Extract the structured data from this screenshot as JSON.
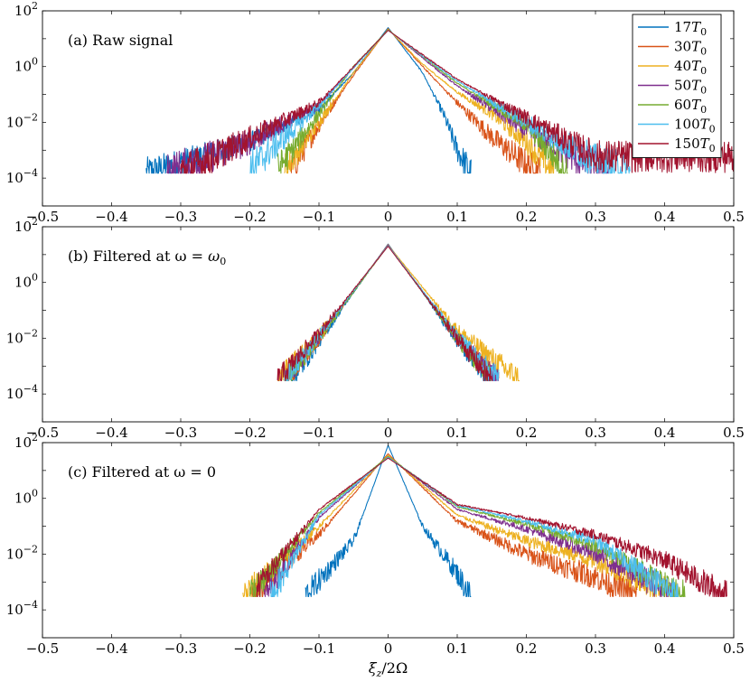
{
  "chart_data": [
    {
      "type": "line",
      "panel_label": "(a) Raw signal",
      "xlabel": "",
      "ylabel": "",
      "xlim": [
        -0.5,
        0.5
      ],
      "ylim": [
        1e-05,
        100
      ],
      "y_scale": "log",
      "x_ticks": [
        "−0.5",
        "−0.4",
        "−0.3",
        "−0.2",
        "−0.1",
        "0",
        "0.1",
        "0.2",
        "0.3",
        "0.4",
        "0.5"
      ],
      "y_ticks": [
        {
          "base": "10",
          "exp": "2",
          "value": 100
        },
        {
          "base": "10",
          "exp": "0",
          "value": 1
        },
        {
          "base": "10",
          "exp": "−2",
          "value": 0.01
        },
        {
          "base": "10",
          "exp": "−4",
          "value": 0.0001
        }
      ],
      "grid": false,
      "legend_position": "top-right",
      "series": [
        {
          "name": "17T0",
          "peak": 25,
          "left_end": -0.35,
          "right_end": 0.12,
          "floor": 0.00015,
          "noise": 0.55,
          "points": [
            [
              -0.35,
              0.00015
            ],
            [
              -0.2,
              0.002
            ],
            [
              -0.1,
              0.03
            ],
            [
              -0.05,
              0.6
            ],
            [
              0,
              25
            ],
            [
              0.05,
              0.6
            ],
            [
              0.08,
              0.02
            ],
            [
              0.1,
              0.001
            ],
            [
              0.12,
              0.00015
            ]
          ]
        },
        {
          "name": "30T0",
          "peak": 23,
          "left_end": -0.14,
          "right_end": 0.22,
          "floor": 0.00015,
          "noise": 0.6,
          "points": [
            [
              -0.14,
              0.0002
            ],
            [
              -0.1,
              0.008
            ],
            [
              -0.05,
              0.5
            ],
            [
              0,
              23
            ],
            [
              0.05,
              1.0
            ],
            [
              0.1,
              0.05
            ],
            [
              0.15,
              0.003
            ],
            [
              0.2,
              0.0003
            ],
            [
              0.22,
              0.00015
            ]
          ]
        },
        {
          "name": "40T0",
          "peak": 22,
          "left_end": -0.15,
          "right_end": 0.24,
          "floor": 0.00015,
          "noise": 0.6,
          "points": [
            [
              -0.15,
              0.0002
            ],
            [
              -0.1,
              0.01
            ],
            [
              -0.05,
              0.6
            ],
            [
              0,
              22
            ],
            [
              0.05,
              1.2
            ],
            [
              0.1,
              0.12
            ],
            [
              0.15,
              0.02
            ],
            [
              0.2,
              0.002
            ],
            [
              0.24,
              0.00015
            ]
          ]
        },
        {
          "name": "50T0",
          "peak": 21,
          "left_end": -0.32,
          "right_end": 0.32,
          "floor": 0.00015,
          "noise": 0.7,
          "points": [
            [
              -0.32,
              0.00015
            ],
            [
              -0.2,
              0.002
            ],
            [
              -0.1,
              0.04
            ],
            [
              0,
              21
            ],
            [
              0.1,
              0.2
            ],
            [
              0.2,
              0.005
            ],
            [
              0.28,
              0.0004
            ],
            [
              0.32,
              0.00015
            ]
          ]
        },
        {
          "name": "60T0",
          "peak": 21,
          "left_end": -0.16,
          "right_end": 0.26,
          "floor": 0.00015,
          "noise": 0.6,
          "points": [
            [
              -0.16,
              0.0002
            ],
            [
              -0.1,
              0.02
            ],
            [
              -0.05,
              1.0
            ],
            [
              0,
              21
            ],
            [
              0.1,
              0.25
            ],
            [
              0.2,
              0.008
            ],
            [
              0.26,
              0.00015
            ]
          ]
        },
        {
          "name": "100T0",
          "peak": 20,
          "left_end": -0.2,
          "right_end": 0.35,
          "floor": 0.00015,
          "noise": 0.7,
          "points": [
            [
              -0.2,
              0.0002
            ],
            [
              -0.1,
              0.04
            ],
            [
              0,
              20
            ],
            [
              0.1,
              0.3
            ],
            [
              0.2,
              0.01
            ],
            [
              0.3,
              0.0004
            ],
            [
              0.35,
              0.00015
            ]
          ]
        },
        {
          "name": "150T0",
          "peak": 20,
          "left_end": -0.3,
          "right_end": 0.5,
          "floor": 0.00015,
          "noise": 0.7,
          "points": [
            [
              -0.3,
              0.00015
            ],
            [
              -0.1,
              0.05
            ],
            [
              0,
              20
            ],
            [
              0.1,
              0.35
            ],
            [
              0.2,
              0.015
            ],
            [
              0.3,
              0.0006
            ],
            [
              0.5,
              0.0006
            ]
          ]
        }
      ]
    },
    {
      "type": "line",
      "panel_label": "(b) Filtered at ω = ω0",
      "xlabel": "",
      "ylabel": "",
      "xlim": [
        -0.5,
        0.5
      ],
      "ylim": [
        1e-05,
        100
      ],
      "y_scale": "log",
      "x_ticks": [
        "−0.5",
        "−0.4",
        "−0.3",
        "−0.2",
        "−0.1",
        "0",
        "0.1",
        "0.2",
        "0.3",
        "0.4",
        "0.5"
      ],
      "y_ticks": [
        {
          "base": "10",
          "exp": "2",
          "value": 100
        },
        {
          "base": "10",
          "exp": "0",
          "value": 1
        },
        {
          "base": "10",
          "exp": "−2",
          "value": 0.01
        },
        {
          "base": "10",
          "exp": "−4",
          "value": 0.0001
        }
      ],
      "grid": false,
      "series": [
        {
          "name": "17T0",
          "peak": 24,
          "left_end": -0.14,
          "right_end": 0.15,
          "floor": 0.0003,
          "noise": 0.45,
          "points": [
            [
              -0.14,
              0.0003
            ],
            [
              -0.1,
              0.008
            ],
            [
              0,
              24
            ],
            [
              0.1,
              0.008
            ],
            [
              0.15,
              0.0003
            ]
          ]
        },
        {
          "name": "30T0",
          "peak": 23,
          "left_end": -0.15,
          "right_end": 0.16,
          "floor": 0.0003,
          "noise": 0.45,
          "points": [
            [
              -0.15,
              0.0003
            ],
            [
              -0.1,
              0.01
            ],
            [
              0,
              23
            ],
            [
              0.1,
              0.01
            ],
            [
              0.16,
              0.0003
            ]
          ]
        },
        {
          "name": "40T0",
          "peak": 22,
          "left_end": -0.16,
          "right_end": 0.19,
          "floor": 0.0003,
          "noise": 0.5,
          "points": [
            [
              -0.16,
              0.0003
            ],
            [
              -0.1,
              0.012
            ],
            [
              0,
              22
            ],
            [
              0.1,
              0.02
            ],
            [
              0.19,
              0.0003
            ]
          ]
        },
        {
          "name": "50T0",
          "peak": 22,
          "left_end": -0.15,
          "right_end": 0.16,
          "floor": 0.0003,
          "noise": 0.45,
          "points": [
            [
              -0.15,
              0.0003
            ],
            [
              -0.1,
              0.012
            ],
            [
              0,
              22
            ],
            [
              0.1,
              0.01
            ],
            [
              0.16,
              0.0003
            ]
          ]
        },
        {
          "name": "60T0",
          "peak": 21,
          "left_end": -0.15,
          "right_end": 0.15,
          "floor": 0.0003,
          "noise": 0.45,
          "points": [
            [
              -0.15,
              0.0003
            ],
            [
              -0.1,
              0.01
            ],
            [
              0,
              21
            ],
            [
              0.1,
              0.01
            ],
            [
              0.15,
              0.0003
            ]
          ]
        },
        {
          "name": "100T0",
          "peak": 21,
          "left_end": -0.15,
          "right_end": 0.16,
          "floor": 0.0003,
          "noise": 0.45,
          "points": [
            [
              -0.15,
              0.0003
            ],
            [
              -0.1,
              0.012
            ],
            [
              0,
              21
            ],
            [
              0.1,
              0.012
            ],
            [
              0.16,
              0.0003
            ]
          ]
        },
        {
          "name": "150T0",
          "peak": 20,
          "left_end": -0.16,
          "right_end": 0.15,
          "floor": 0.0003,
          "noise": 0.45,
          "points": [
            [
              -0.16,
              0.0003
            ],
            [
              -0.1,
              0.015
            ],
            [
              0,
              20
            ],
            [
              0.1,
              0.01
            ],
            [
              0.15,
              0.0003
            ]
          ]
        }
      ]
    },
    {
      "type": "line",
      "panel_label": "(c) Filtered at ω = 0",
      "xlabel": "ξz/2Ω",
      "ylabel": "",
      "xlim": [
        -0.5,
        0.5
      ],
      "ylim": [
        1e-05,
        100
      ],
      "y_scale": "log",
      "x_ticks": [
        "−0.5",
        "−0.4",
        "−0.3",
        "−0.2",
        "−0.1",
        "0",
        "0.1",
        "0.2",
        "0.3",
        "0.4",
        "0.5"
      ],
      "y_ticks": [
        {
          "base": "10",
          "exp": "2",
          "value": 100
        },
        {
          "base": "10",
          "exp": "0",
          "value": 1
        },
        {
          "base": "10",
          "exp": "−2",
          "value": 0.01
        },
        {
          "base": "10",
          "exp": "−4",
          "value": 0.0001
        }
      ],
      "grid": false,
      "series": [
        {
          "name": "17T0",
          "peak": 80,
          "left_end": -0.12,
          "right_end": 0.12,
          "floor": 0.0003,
          "noise": 0.5,
          "points": [
            [
              -0.12,
              0.0003
            ],
            [
              -0.05,
              0.03
            ],
            [
              0,
              80
            ],
            [
              0.05,
              0.1
            ],
            [
              0.1,
              0.002
            ],
            [
              0.12,
              0.0003
            ]
          ]
        },
        {
          "name": "30T0",
          "peak": 40,
          "left_end": -0.2,
          "right_end": 0.36,
          "floor": 0.0003,
          "noise": 0.55,
          "points": [
            [
              -0.2,
              0.0003
            ],
            [
              -0.1,
              0.05
            ],
            [
              0,
              40
            ],
            [
              0.1,
              0.15
            ],
            [
              0.2,
              0.01
            ],
            [
              0.3,
              0.0015
            ],
            [
              0.36,
              0.0003
            ]
          ]
        },
        {
          "name": "40T0",
          "peak": 35,
          "left_end": -0.21,
          "right_end": 0.42,
          "floor": 0.0003,
          "noise": 0.55,
          "points": [
            [
              -0.21,
              0.0003
            ],
            [
              -0.1,
              0.1
            ],
            [
              0,
              35
            ],
            [
              0.1,
              0.25
            ],
            [
              0.2,
              0.03
            ],
            [
              0.3,
              0.006
            ],
            [
              0.42,
              0.0003
            ]
          ]
        },
        {
          "name": "50T0",
          "peak": 32,
          "left_end": -0.18,
          "right_end": 0.42,
          "floor": 0.0003,
          "noise": 0.55,
          "points": [
            [
              -0.18,
              0.0003
            ],
            [
              -0.1,
              0.2
            ],
            [
              0,
              32
            ],
            [
              0.1,
              0.4
            ],
            [
              0.2,
              0.08
            ],
            [
              0.3,
              0.01
            ],
            [
              0.42,
              0.0003
            ]
          ]
        },
        {
          "name": "60T0",
          "peak": 32,
          "left_end": -0.2,
          "right_end": 0.43,
          "floor": 0.0003,
          "noise": 0.55,
          "points": [
            [
              -0.2,
              0.0003
            ],
            [
              -0.1,
              0.3
            ],
            [
              0,
              32
            ],
            [
              0.1,
              0.5
            ],
            [
              0.2,
              0.12
            ],
            [
              0.3,
              0.02
            ],
            [
              0.43,
              0.0003
            ]
          ]
        },
        {
          "name": "100T0",
          "peak": 30,
          "left_end": -0.17,
          "right_end": 0.42,
          "floor": 0.0003,
          "noise": 0.55,
          "points": [
            [
              -0.17,
              0.0003
            ],
            [
              -0.1,
              0.25
            ],
            [
              0,
              30
            ],
            [
              0.1,
              0.55
            ],
            [
              0.2,
              0.15
            ],
            [
              0.3,
              0.03
            ],
            [
              0.42,
              0.0003
            ]
          ]
        },
        {
          "name": "150T0",
          "peak": 28,
          "left_end": -0.19,
          "right_end": 0.49,
          "floor": 0.0003,
          "noise": 0.55,
          "points": [
            [
              -0.19,
              0.0006
            ],
            [
              -0.1,
              0.4
            ],
            [
              0,
              28
            ],
            [
              0.1,
              0.6
            ],
            [
              0.2,
              0.2
            ],
            [
              0.3,
              0.05
            ],
            [
              0.4,
              0.006
            ],
            [
              0.49,
              0.0003
            ]
          ]
        }
      ]
    }
  ],
  "legend": [
    {
      "label_base": "17",
      "label_var": "T",
      "label_sub": "0",
      "color": "#0072BD"
    },
    {
      "label_base": "30",
      "label_var": "T",
      "label_sub": "0",
      "color": "#D95319"
    },
    {
      "label_base": "40",
      "label_var": "T",
      "label_sub": "0",
      "color": "#EDB120"
    },
    {
      "label_base": "50",
      "label_var": "T",
      "label_sub": "0",
      "color": "#7E2F8E"
    },
    {
      "label_base": "60",
      "label_var": "T",
      "label_sub": "0",
      "color": "#77AC30"
    },
    {
      "label_base": "100",
      "label_var": "T",
      "label_sub": "0",
      "color": "#4DBEEE"
    },
    {
      "label_base": "150",
      "label_var": "T",
      "label_sub": "0",
      "color": "#A2142F"
    }
  ],
  "xlabel_parts": {
    "xi": "ξ",
    "sub": "z",
    "rest": "/2Ω"
  }
}
